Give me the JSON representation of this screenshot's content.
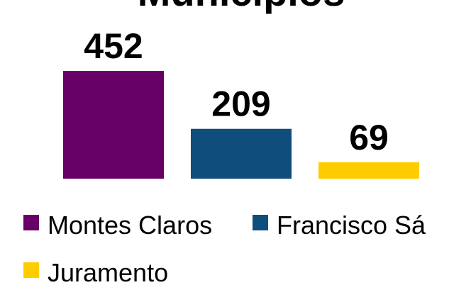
{
  "chart_data": {
    "type": "bar",
    "title": "Municípios",
    "categories": [
      "Montes Claros",
      "Francisco Sá",
      "Juramento"
    ],
    "series": [
      {
        "name": "Montes Claros",
        "color": "#660066",
        "values": [
          452,
          null,
          null
        ]
      },
      {
        "name": "Francisco Sá",
        "color": "#0e4d7c",
        "values": [
          null,
          209,
          null
        ]
      },
      {
        "name": "Juramento",
        "color": "#ffcc00",
        "values": [
          null,
          null,
          69
        ]
      }
    ]
  }
}
